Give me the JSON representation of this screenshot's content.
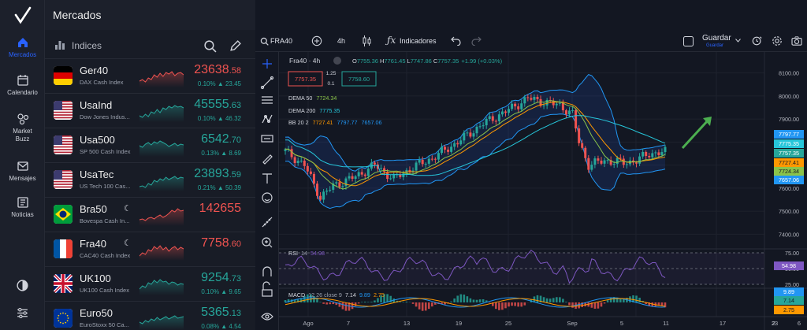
{
  "rail": {
    "items": [
      {
        "label": "Mercados",
        "icon": "home-icon"
      },
      {
        "label": "Calendario",
        "icon": "calendar-icon"
      },
      {
        "label": "Market Buzz",
        "icon": "buzz-icon"
      },
      {
        "label": "Mensajes",
        "icon": "mail-icon"
      },
      {
        "label": "Noticias",
        "icon": "news-icon"
      }
    ]
  },
  "header": {
    "title": "Mercados"
  },
  "panel": {
    "tab": "Indices"
  },
  "markets": [
    {
      "symbol": "Ger40",
      "desc": "DAX Cash Index",
      "price_main": "23638",
      "price_dec": ".58",
      "change": "0.10% ▲ 23.45",
      "dir": "down",
      "flag": "de",
      "spark": [
        20,
        18,
        21,
        16,
        18,
        12,
        15,
        10,
        14,
        9,
        11,
        8,
        13,
        10,
        9,
        12
      ]
    },
    {
      "symbol": "UsaInd",
      "desc": "Dow Jones Indus...",
      "price_main": "45555",
      "price_dec": ".63",
      "change": "0.10% ▲ 46.32",
      "dir": "up",
      "flag": "us",
      "spark": [
        20,
        22,
        18,
        21,
        15,
        17,
        12,
        16,
        10,
        12,
        8,
        10,
        7,
        9,
        8,
        10
      ]
    },
    {
      "symbol": "Usa500",
      "desc": "SP 500 Cash Index",
      "price_main": "6542",
      "price_dec": ".70",
      "change": "0.13% ▲ 8.69",
      "dir": "up",
      "flag": "us",
      "spark": [
        14,
        16,
        12,
        10,
        13,
        9,
        11,
        8,
        10,
        12,
        15,
        13,
        11,
        14,
        12,
        13
      ]
    },
    {
      "symbol": "UsaTec",
      "desc": "US Tech 100 Cas...",
      "price_main": "23893",
      "price_dec": ".59",
      "change": "0.21% ▲ 50.39",
      "dir": "up",
      "flag": "us",
      "spark": [
        22,
        21,
        23,
        18,
        20,
        14,
        16,
        12,
        14,
        10,
        13,
        11,
        9,
        12,
        10,
        11
      ]
    },
    {
      "symbol": "Bra50",
      "desc": "Bovespa Cash In...",
      "price_main": "142655",
      "price_dec": "",
      "change": "",
      "dir": "down",
      "flag": "br",
      "moon": true,
      "spark": [
        20,
        19,
        21,
        18,
        17,
        19,
        16,
        14,
        17,
        15,
        12,
        8,
        10,
        6,
        9,
        8
      ]
    },
    {
      "symbol": "Fra40",
      "desc": "CAC40 Cash Index",
      "price_main": "7758",
      "price_dec": ".60",
      "change": "",
      "dir": "down",
      "flag": "fr",
      "moon": true,
      "spark": [
        22,
        18,
        20,
        14,
        16,
        10,
        13,
        9,
        14,
        11,
        16,
        12,
        10,
        14,
        11,
        13
      ]
    },
    {
      "symbol": "UK100",
      "desc": "UK100 Cash Index",
      "price_main": "9254",
      "price_dec": ".73",
      "change": "0.10% ▲ 9.65",
      "dir": "up",
      "flag": "uk",
      "spark": [
        20,
        16,
        18,
        12,
        14,
        9,
        12,
        8,
        11,
        10,
        14,
        11,
        12,
        15,
        13,
        14
      ]
    },
    {
      "symbol": "Euro50",
      "desc": "EuroStoxx 50 Ca...",
      "price_main": "5365",
      "price_dec": ".13",
      "change": "0.08% ▲ 4.54",
      "dir": "up",
      "flag": "eu",
      "spark": [
        18,
        20,
        16,
        18,
        14,
        16,
        12,
        15,
        13,
        11,
        14,
        12,
        10,
        13,
        12,
        11
      ]
    }
  ],
  "toolbar": {
    "symbol": "FRA40",
    "interval": "4h",
    "indicators": "Indicadores",
    "save": "Guardar",
    "save_sub": "Guardar"
  },
  "legend": {
    "title": "Fra40 · 4h",
    "o": "7755.36",
    "h": "7761.45",
    "l": "7747.86",
    "c": "7757.35",
    "chg": "+1.99 (+0.03%)",
    "sell": "7757.35",
    "spread": "1.25",
    "qty": "0.1",
    "buy": "7758.60",
    "dema50_label": "DEMA 50",
    "dema50": "7724.34",
    "dema200_label": "DEMA 200",
    "dema200": "7775.35",
    "bb_label": "BB 20 2",
    "bb_mid": "7727.41",
    "bb_up": "7797.77",
    "bb_low": "7657.06"
  },
  "price_axis": [
    "8100.00",
    "8000.00",
    "7900.00",
    "7800.00",
    "7600.00",
    "7500.00",
    "7400.00"
  ],
  "price_tags": [
    "7797.77",
    "7775.35",
    "7757.35",
    "7727.41",
    "7724.34",
    "7657.06"
  ],
  "rsi": {
    "label": "RSI",
    "len": "14",
    "value": "54.98",
    "axis": [
      "75.00",
      "50.00",
      "25.00"
    ],
    "tag": "54.98"
  },
  "macd": {
    "label": "MACD",
    "params": "12 26 close 9",
    "v1": "7.14",
    "v2": "9.89",
    "v3": "2.75",
    "tags": [
      "9.89",
      "7.14",
      "2.75"
    ]
  },
  "time_axis": [
    "Ago",
    "7",
    "13",
    "19",
    "25",
    "Sep",
    "5",
    "11",
    "17",
    "23",
    "2",
    "6"
  ],
  "chart_data": {
    "type": "candlestick",
    "symbol": "Fra40",
    "interval": "4h",
    "ylim": [
      7350,
      8150
    ],
    "last": 7757.35
  }
}
